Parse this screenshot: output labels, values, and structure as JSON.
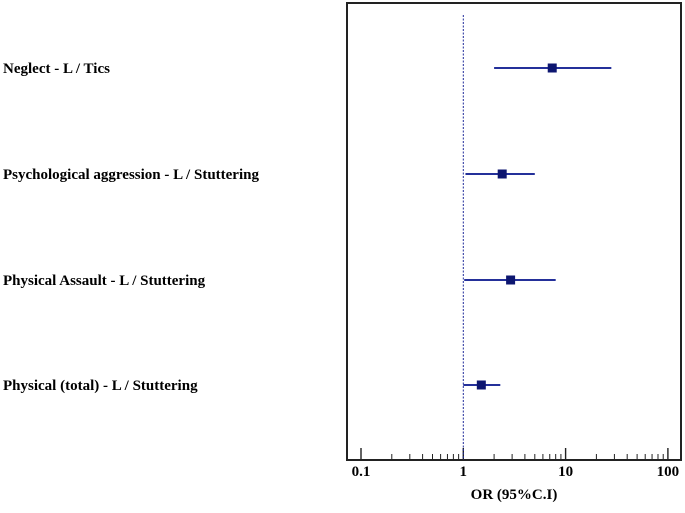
{
  "chart_data": {
    "type": "forest",
    "xlabel": "OR (95%C.I)",
    "x_scale": "log",
    "xlim": [
      0.1,
      100
    ],
    "reference_line": 1,
    "x_ticks": [
      {
        "value": 0.1,
        "label": "0.1"
      },
      {
        "value": 1,
        "label": "1"
      },
      {
        "value": 10,
        "label": "10"
      },
      {
        "value": 100,
        "label": "100"
      }
    ],
    "rows": [
      {
        "label": "Neglect - L / Tics",
        "or": 7.4,
        "lower": 2.0,
        "upper": 28.0
      },
      {
        "label": "Psychological aggression - L / Stuttering",
        "or": 2.4,
        "lower": 1.05,
        "upper": 5.0
      },
      {
        "label": "Physical Assault - L / Stuttering",
        "or": 2.9,
        "lower": 1.02,
        "upper": 8.0
      },
      {
        "label": "Physical (total) - L / Stuttering",
        "or": 1.5,
        "lower": 1.0,
        "upper": 2.3
      }
    ],
    "colors": {
      "marker": "#0d1670",
      "ci_line": "#24309a",
      "reference": "#1e2a9a",
      "frame": "#222222"
    },
    "grid": false
  }
}
